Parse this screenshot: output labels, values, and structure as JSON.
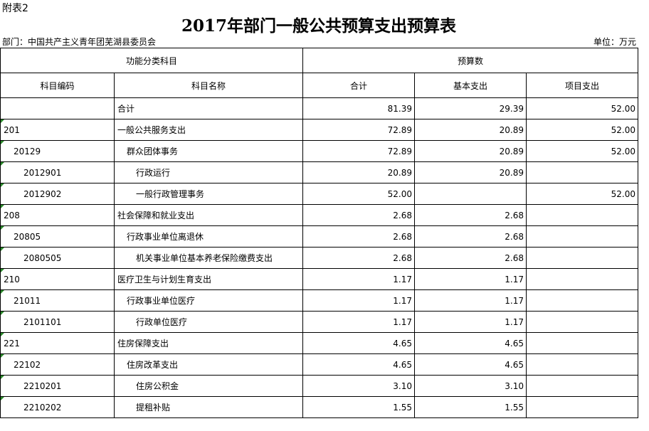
{
  "attachment_label": "附表2",
  "title": "2017年部门一般公共预算支出预算表",
  "department": "部门：中国共产主义青年团芜湖县委员会",
  "unit": "单位：万元",
  "headers": {
    "group1": "功能分类科目",
    "group2": "预算数",
    "code": "科目编码",
    "name": "科目名称",
    "total": "合计",
    "basic": "基本支出",
    "project": "项目支出"
  },
  "rows": [
    {
      "code": "",
      "name": "合计",
      "total": "81.39",
      "basic": "29.39",
      "project": "52.00",
      "level": 1
    },
    {
      "code": "201",
      "name": "一般公共服务支出",
      "total": "72.89",
      "basic": "20.89",
      "project": "52.00",
      "level": 1
    },
    {
      "code": "20129",
      "name": "群众团体事务",
      "total": "72.89",
      "basic": "20.89",
      "project": "52.00",
      "level": 2
    },
    {
      "code": "2012901",
      "name": "行政运行",
      "total": "20.89",
      "basic": "20.89",
      "project": "",
      "level": 3
    },
    {
      "code": "2012902",
      "name": "一般行政管理事务",
      "total": "52.00",
      "basic": "",
      "project": "52.00",
      "level": 3
    },
    {
      "code": "208",
      "name": "社会保障和就业支出",
      "total": "2.68",
      "basic": "2.68",
      "project": "",
      "level": 1
    },
    {
      "code": "20805",
      "name": "行政事业单位离退休",
      "total": "2.68",
      "basic": "2.68",
      "project": "",
      "level": 2
    },
    {
      "code": "2080505",
      "name": "机关事业单位基本养老保险缴费支出",
      "total": "2.68",
      "basic": "2.68",
      "project": "",
      "level": 3
    },
    {
      "code": "210",
      "name": "医疗卫生与计划生育支出",
      "total": "1.17",
      "basic": "1.17",
      "project": "",
      "level": 1
    },
    {
      "code": "21011",
      "name": "行政事业单位医疗",
      "total": "1.17",
      "basic": "1.17",
      "project": "",
      "level": 2
    },
    {
      "code": "2101101",
      "name": "行政单位医疗",
      "total": "1.17",
      "basic": "1.17",
      "project": "",
      "level": 3
    },
    {
      "code": "221",
      "name": "住房保障支出",
      "total": "4.65",
      "basic": "4.65",
      "project": "",
      "level": 1
    },
    {
      "code": "22102",
      "name": "住房改革支出",
      "total": "4.65",
      "basic": "4.65",
      "project": "",
      "level": 2
    },
    {
      "code": "2210201",
      "name": "住房公积金",
      "total": "3.10",
      "basic": "3.10",
      "project": "",
      "level": 3
    },
    {
      "code": "2210202",
      "name": "提租补贴",
      "total": "1.55",
      "basic": "1.55",
      "project": "",
      "level": 3
    }
  ]
}
